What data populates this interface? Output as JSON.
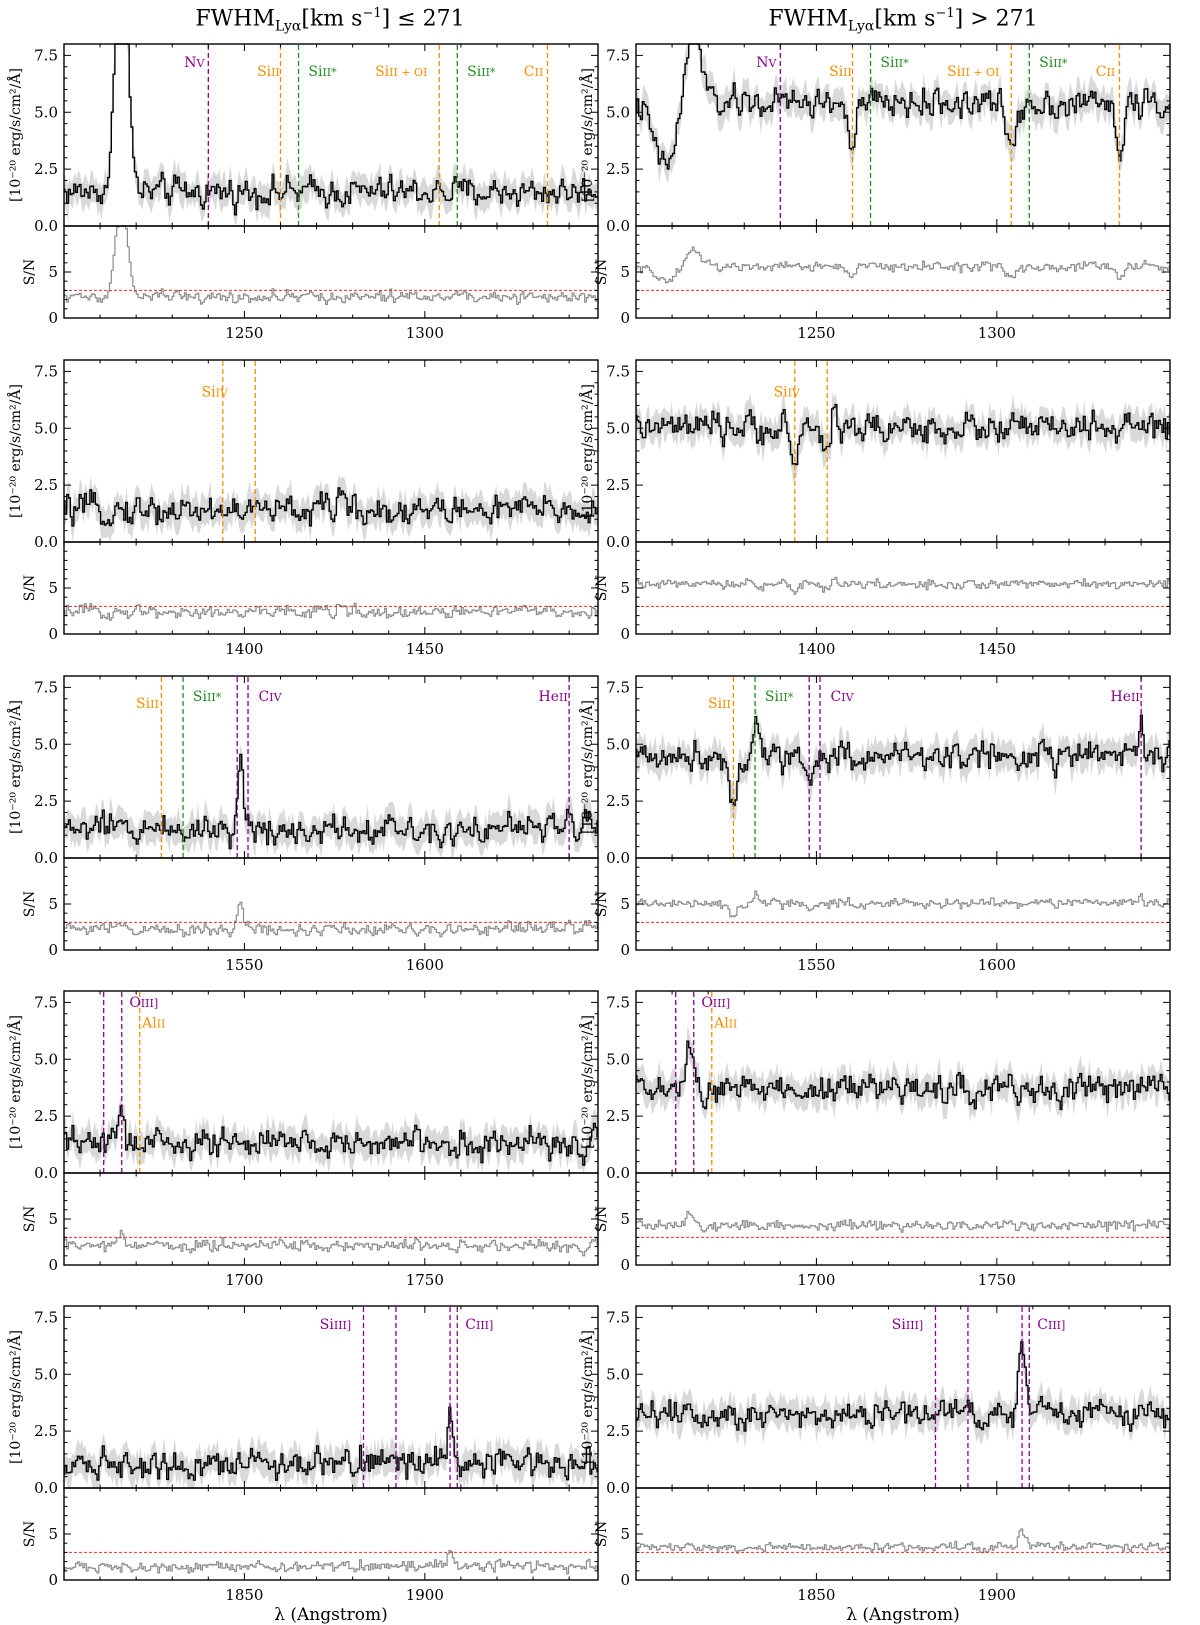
{
  "figure": {
    "titles": [
      {
        "pre": "FWHM",
        "sub": "Lyα",
        "mid": "[km s",
        "sup": "−1",
        "post": "] ≤ 271"
      },
      {
        "pre": "FWHM",
        "sub": "Lyα",
        "mid": "[km s",
        "sup": "−1",
        "post": "] > 271"
      }
    ],
    "ylabel_flux": "[10⁻²⁰ erg/s/cm²/Å]",
    "ylabel_sn": "S/N",
    "xlabel": "λ (Angstrom)",
    "colors": {
      "spectrum": "#000000",
      "error_band": "#d9d9d9",
      "sn_line": "#8c8c8c",
      "sn_threshold": "#e8302a",
      "low_ion": "#ff8c00",
      "fine_structure": "#228b22",
      "high_ion": "#8b008b"
    },
    "sn_threshold": 3
  },
  "chart_data": [
    {
      "type": "line",
      "row": 0,
      "col": 0,
      "xlim": [
        1200,
        1348
      ],
      "flux_ylim": [
        0,
        8
      ],
      "sn_ylim": [
        0,
        10
      ],
      "xticks": [
        1250,
        1300
      ],
      "flux_yticks": [
        "0.0",
        "2.5",
        "5.0",
        "7.5"
      ],
      "sn_yticks": [
        "0",
        "5"
      ],
      "continuum": 1.5,
      "noise": 0.45,
      "sn_level": 2.3,
      "features": [
        {
          "x": 1216,
          "amp": 12,
          "w": 1.6
        }
      ],
      "lines": [
        {
          "x": 1240,
          "label": "NV",
          "el": "N",
          "ion": "V",
          "kind": "high",
          "ly": 7.0
        },
        {
          "x": 1260,
          "label": "SiII",
          "el": "Si",
          "ion": "II",
          "kind": "low",
          "ly": 6.6
        },
        {
          "x": 1265,
          "label": "SiII*",
          "el": "Si",
          "ion": "II*",
          "kind": "fine",
          "ly": 6.6
        },
        {
          "x": 1304,
          "label": "SiII + OI",
          "el": "Si",
          "ion": "II + OI",
          "kind": "low",
          "ly": 6.6
        },
        {
          "x": 1309,
          "label": "SiII*",
          "el": "Si",
          "ion": "II*",
          "kind": "fine",
          "ly": 6.6
        },
        {
          "x": 1334,
          "label": "CII",
          "el": "C",
          "ion": "II",
          "kind": "low",
          "ly": 6.6
        }
      ]
    },
    {
      "type": "line",
      "row": 0,
      "col": 1,
      "xlim": [
        1200,
        1348
      ],
      "flux_ylim": [
        0,
        8
      ],
      "sn_ylim": [
        0,
        10
      ],
      "xticks": [
        1250,
        1300
      ],
      "flux_yticks": [
        "0.0",
        "2.5",
        "5.0",
        "7.5"
      ],
      "sn_yticks": [
        "0",
        "5"
      ],
      "continuum": 5.4,
      "noise": 0.45,
      "sn_level": 5.6,
      "features": [
        {
          "x": 1208,
          "amp": -2.8,
          "w": 3.0
        },
        {
          "x": 1216,
          "amp": 3.5,
          "w": 2.0
        },
        {
          "x": 1260,
          "amp": -2.1,
          "w": 1.0
        },
        {
          "x": 1304,
          "amp": -1.9,
          "w": 1.3
        },
        {
          "x": 1334,
          "amp": -2.6,
          "w": 0.9
        }
      ],
      "lines": [
        {
          "x": 1240,
          "label": "NV",
          "el": "N",
          "ion": "V",
          "kind": "high",
          "ly": 7.0
        },
        {
          "x": 1260,
          "label": "SiII",
          "el": "Si",
          "ion": "II",
          "kind": "low",
          "ly": 6.6
        },
        {
          "x": 1265,
          "label": "SiII*",
          "el": "Si",
          "ion": "II*",
          "kind": "fine",
          "ly": 7.0
        },
        {
          "x": 1304,
          "label": "SiII + OI",
          "el": "Si",
          "ion": "II + OI",
          "kind": "low",
          "ly": 6.6
        },
        {
          "x": 1309,
          "label": "SiII*",
          "el": "Si",
          "ion": "II*",
          "kind": "fine",
          "ly": 7.0
        },
        {
          "x": 1334,
          "label": "CII",
          "el": "C",
          "ion": "II",
          "kind": "low",
          "ly": 6.6
        }
      ]
    },
    {
      "type": "line",
      "row": 1,
      "col": 0,
      "xlim": [
        1350,
        1498
      ],
      "flux_ylim": [
        0,
        8
      ],
      "sn_ylim": [
        0,
        10
      ],
      "xticks": [
        1400,
        1450
      ],
      "flux_yticks": [
        "0.0",
        "2.5",
        "5.0",
        "7.5"
      ],
      "sn_yticks": [
        "0",
        "5"
      ],
      "continuum": 1.4,
      "noise": 0.45,
      "sn_level": 2.4,
      "features": [
        {
          "x": 1427,
          "amp": 1.2,
          "w": 0.7
        }
      ],
      "lines": [
        {
          "x": 1394,
          "label": "SiIV",
          "el": "Si",
          "ion": "IV",
          "kind": "low",
          "ly": 6.4
        },
        {
          "x": 1403,
          "label": "",
          "el": "",
          "ion": "",
          "kind": "low",
          "ly": 6.4
        }
      ]
    },
    {
      "type": "line",
      "row": 1,
      "col": 1,
      "xlim": [
        1350,
        1498
      ],
      "flux_ylim": [
        0,
        8
      ],
      "sn_ylim": [
        0,
        10
      ],
      "xticks": [
        1400,
        1450
      ],
      "flux_yticks": [
        "0.0",
        "2.5",
        "5.0",
        "7.5"
      ],
      "sn_yticks": [
        "0",
        "5"
      ],
      "continuum": 5.0,
      "noise": 0.45,
      "sn_level": 5.4,
      "features": [
        {
          "x": 1394,
          "amp": -1.6,
          "w": 0.9
        },
        {
          "x": 1403,
          "amp": -1.3,
          "w": 0.9
        },
        {
          "x": 1405,
          "amp": 1.0,
          "w": 0.8
        }
      ],
      "lines": [
        {
          "x": 1394,
          "label": "SiIV",
          "el": "Si",
          "ion": "IV",
          "kind": "low",
          "ly": 6.4
        },
        {
          "x": 1403,
          "label": "",
          "el": "",
          "ion": "",
          "kind": "low",
          "ly": 6.4
        }
      ]
    },
    {
      "type": "line",
      "row": 2,
      "col": 0,
      "xlim": [
        1500,
        1648
      ],
      "flux_ylim": [
        0,
        8
      ],
      "sn_ylim": [
        0,
        10
      ],
      "xticks": [
        1550,
        1600
      ],
      "flux_yticks": [
        "0.0",
        "2.5",
        "5.0",
        "7.5"
      ],
      "sn_yticks": [
        "0",
        "5"
      ],
      "continuum": 1.3,
      "noise": 0.45,
      "sn_level": 2.3,
      "features": [
        {
          "x": 1549,
          "amp": 3.0,
          "w": 0.7
        },
        {
          "x": 1640,
          "amp": 0.8,
          "w": 0.7
        }
      ],
      "lines": [
        {
          "x": 1527,
          "label": "SiII",
          "el": "Si",
          "ion": "II",
          "kind": "low",
          "ly": 6.6
        },
        {
          "x": 1533,
          "label": "SiII*",
          "el": "Si",
          "ion": "II*",
          "kind": "fine",
          "ly": 6.9
        },
        {
          "x": 1548,
          "label": "",
          "el": "",
          "ion": "",
          "kind": "high",
          "ly": 6.9
        },
        {
          "x": 1551,
          "label": "CIV",
          "el": "C",
          "ion": "IV",
          "kind": "high",
          "ly": 6.9
        },
        {
          "x": 1640,
          "label": "HeII",
          "el": "He",
          "ion": "II",
          "kind": "high",
          "ly": 6.9
        }
      ]
    },
    {
      "type": "line",
      "row": 2,
      "col": 1,
      "xlim": [
        1500,
        1648
      ],
      "flux_ylim": [
        0,
        8
      ],
      "sn_ylim": [
        0,
        10
      ],
      "xticks": [
        1550,
        1600
      ],
      "flux_yticks": [
        "0.0",
        "2.5",
        "5.0",
        "7.5"
      ],
      "sn_yticks": [
        "0",
        "5"
      ],
      "continuum": 4.5,
      "noise": 0.45,
      "sn_level": 5.1,
      "features": [
        {
          "x": 1527,
          "amp": -2.2,
          "w": 0.9
        },
        {
          "x": 1533,
          "amp": 1.4,
          "w": 0.8
        },
        {
          "x": 1548,
          "amp": -1.5,
          "w": 0.7
        },
        {
          "x": 1640,
          "amp": 1.6,
          "w": 0.6
        }
      ],
      "lines": [
        {
          "x": 1527,
          "label": "SiII",
          "el": "Si",
          "ion": "II",
          "kind": "low",
          "ly": 6.6
        },
        {
          "x": 1533,
          "label": "SiII*",
          "el": "Si",
          "ion": "II*",
          "kind": "fine",
          "ly": 6.9
        },
        {
          "x": 1548,
          "label": "",
          "el": "",
          "ion": "",
          "kind": "high",
          "ly": 6.9
        },
        {
          "x": 1551,
          "label": "CIV",
          "el": "C",
          "ion": "IV",
          "kind": "high",
          "ly": 6.9
        },
        {
          "x": 1640,
          "label": "HeII",
          "el": "He",
          "ion": "II",
          "kind": "high",
          "ly": 6.9
        }
      ]
    },
    {
      "type": "line",
      "row": 3,
      "col": 0,
      "xlim": [
        1650,
        1798
      ],
      "flux_ylim": [
        0,
        8
      ],
      "sn_ylim": [
        0,
        10
      ],
      "xticks": [
        1700,
        1750
      ],
      "flux_yticks": [
        "0.0",
        "2.5",
        "5.0",
        "7.5"
      ],
      "sn_yticks": [
        "0",
        "5"
      ],
      "continuum": 1.3,
      "noise": 0.45,
      "sn_level": 2.1,
      "features": [
        {
          "x": 1666,
          "amp": 1.9,
          "w": 0.7
        }
      ],
      "lines": [
        {
          "x": 1661,
          "label": "",
          "el": "",
          "ion": "",
          "kind": "high",
          "ly": 7.3
        },
        {
          "x": 1666,
          "label": "OIII]",
          "el": "O",
          "ion": "III]",
          "kind": "high",
          "ly": 7.3
        },
        {
          "x": 1671,
          "label": "AlII",
          "el": "Al",
          "ion": "II",
          "kind": "low",
          "ly": 6.4
        }
      ]
    },
    {
      "type": "line",
      "row": 3,
      "col": 1,
      "xlim": [
        1650,
        1798
      ],
      "flux_ylim": [
        0,
        8
      ],
      "sn_ylim": [
        0,
        10
      ],
      "xticks": [
        1700,
        1750
      ],
      "flux_yticks": [
        "0.0",
        "2.5",
        "5.0",
        "7.5"
      ],
      "sn_yticks": [
        "0",
        "5"
      ],
      "continuum": 3.7,
      "noise": 0.45,
      "sn_level": 4.3,
      "features": [
        {
          "x": 1665,
          "amp": 2.0,
          "w": 0.9
        },
        {
          "x": 1669,
          "amp": -1.2,
          "w": 0.7
        }
      ],
      "lines": [
        {
          "x": 1661,
          "label": "",
          "el": "",
          "ion": "",
          "kind": "high",
          "ly": 7.3
        },
        {
          "x": 1666,
          "label": "OIII]",
          "el": "O",
          "ion": "III]",
          "kind": "high",
          "ly": 7.3
        },
        {
          "x": 1671,
          "label": "AlII",
          "el": "Al",
          "ion": "II",
          "kind": "low",
          "ly": 6.4
        }
      ]
    },
    {
      "type": "line",
      "row": 4,
      "col": 0,
      "xlim": [
        1800,
        1948
      ],
      "flux_ylim": [
        0,
        8
      ],
      "sn_ylim": [
        0,
        10
      ],
      "xticks": [
        1850,
        1900
      ],
      "flux_yticks": [
        "0.0",
        "2.5",
        "5.0",
        "7.5"
      ],
      "sn_yticks": [
        "0",
        "5"
      ],
      "continuum": 1.1,
      "noise": 0.45,
      "sn_level": 1.5,
      "features": [
        {
          "x": 1907,
          "amp": 2.6,
          "w": 0.7
        }
      ],
      "lines": [
        {
          "x": 1883,
          "label": "SiIII]",
          "el": "Si",
          "ion": "III]",
          "kind": "high",
          "ly": 7.0
        },
        {
          "x": 1892,
          "label": "",
          "el": "",
          "ion": "",
          "kind": "high",
          "ly": 7.0
        },
        {
          "x": 1907,
          "label": "",
          "el": "",
          "ion": "",
          "kind": "high",
          "ly": 7.0
        },
        {
          "x": 1909,
          "label": "CIII]",
          "el": "C",
          "ion": "III]",
          "kind": "high",
          "ly": 7.0
        }
      ]
    },
    {
      "type": "line",
      "row": 4,
      "col": 1,
      "xlim": [
        1800,
        1948
      ],
      "flux_ylim": [
        0,
        8
      ],
      "sn_ylim": [
        0,
        10
      ],
      "xticks": [
        1850,
        1900
      ],
      "flux_yticks": [
        "0.0",
        "2.5",
        "5.0",
        "7.5"
      ],
      "sn_yticks": [
        "0",
        "5"
      ],
      "continuum": 3.3,
      "noise": 0.45,
      "sn_level": 3.6,
      "features": [
        {
          "x": 1907,
          "amp": 2.8,
          "w": 0.9
        }
      ],
      "lines": [
        {
          "x": 1883,
          "label": "SiIII]",
          "el": "Si",
          "ion": "III]",
          "kind": "high",
          "ly": 7.0
        },
        {
          "x": 1892,
          "label": "",
          "el": "",
          "ion": "",
          "kind": "high",
          "ly": 7.0
        },
        {
          "x": 1907,
          "label": "",
          "el": "",
          "ion": "",
          "kind": "high",
          "ly": 7.0
        },
        {
          "x": 1909,
          "label": "CIII]",
          "el": "C",
          "ion": "III]",
          "kind": "high",
          "ly": 7.0
        }
      ]
    }
  ]
}
